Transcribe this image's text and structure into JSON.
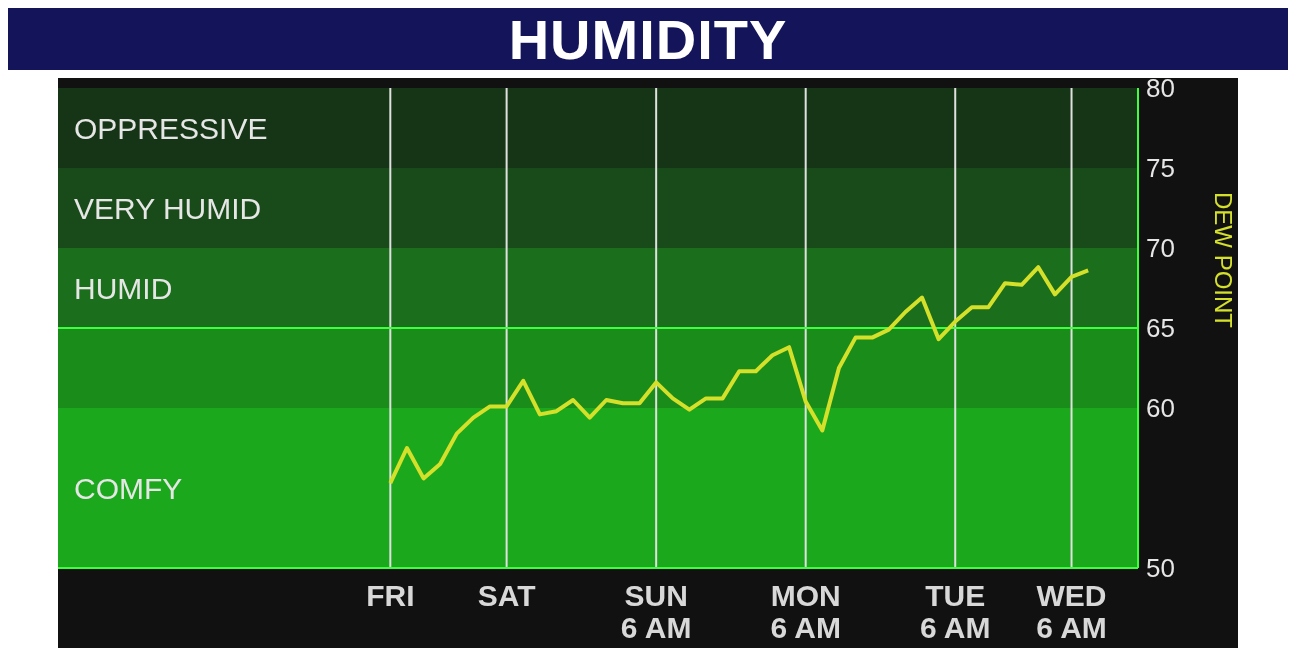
{
  "chart_data": {
    "type": "line",
    "title": "HUMIDITY",
    "ylabel": "DEW POINT",
    "categories": [
      "FRI",
      null,
      null,
      null,
      null,
      null,
      null,
      "SAT",
      null,
      null,
      null,
      null,
      null,
      null,
      null,
      null,
      "SUN\n6 AM",
      null,
      null,
      null,
      null,
      null,
      null,
      null,
      null,
      "MON\n6 AM",
      null,
      null,
      null,
      null,
      null,
      null,
      null,
      null,
      "TUE\n6 AM",
      null,
      null,
      null,
      null,
      null,
      null,
      "WED\n6 AM",
      null
    ],
    "series": [
      {
        "color": "#d4e02a",
        "values": [
          55.3,
          57.5,
          55.6,
          56.5,
          58.4,
          59.4,
          60.1,
          60.1,
          61.7,
          59.6,
          59.8,
          60.5,
          59.4,
          60.5,
          60.3,
          60.3,
          61.6,
          60.6,
          59.9,
          60.6,
          60.6,
          62.3,
          62.3,
          63.3,
          63.8,
          60.4,
          58.6,
          62.5,
          64.4,
          64.4,
          64.9,
          66.0,
          66.9,
          64.3,
          65.4,
          66.3,
          66.3,
          67.8,
          67.7,
          68.8,
          67.1,
          68.2,
          68.6
        ]
      }
    ],
    "ylim": [
      50,
      80
    ],
    "yticks": [
      50,
      60,
      65,
      70,
      75,
      80
    ],
    "grid": "x",
    "bands": [
      {
        "axis": "y",
        "from": 75,
        "to": 80,
        "label": "OPPRESSIVE",
        "color": "#163516"
      },
      {
        "axis": "y",
        "from": 70,
        "to": 75,
        "label": "VERY HUMID",
        "color": "#194a19"
      },
      {
        "axis": "y",
        "from": 65,
        "to": 70,
        "label": "HUMID",
        "color": "#1b6e1b"
      },
      {
        "axis": "y",
        "from": 60,
        "to": 65,
        "label": null,
        "color": "#1a8c1a"
      },
      {
        "axis": "y",
        "from": 50,
        "to": 60,
        "label": "COMFY",
        "color": "#1ca81c"
      }
    ],
    "ref_lines": [
      {
        "axis": "y",
        "value": 65,
        "color": "#3dff3d"
      }
    ]
  }
}
